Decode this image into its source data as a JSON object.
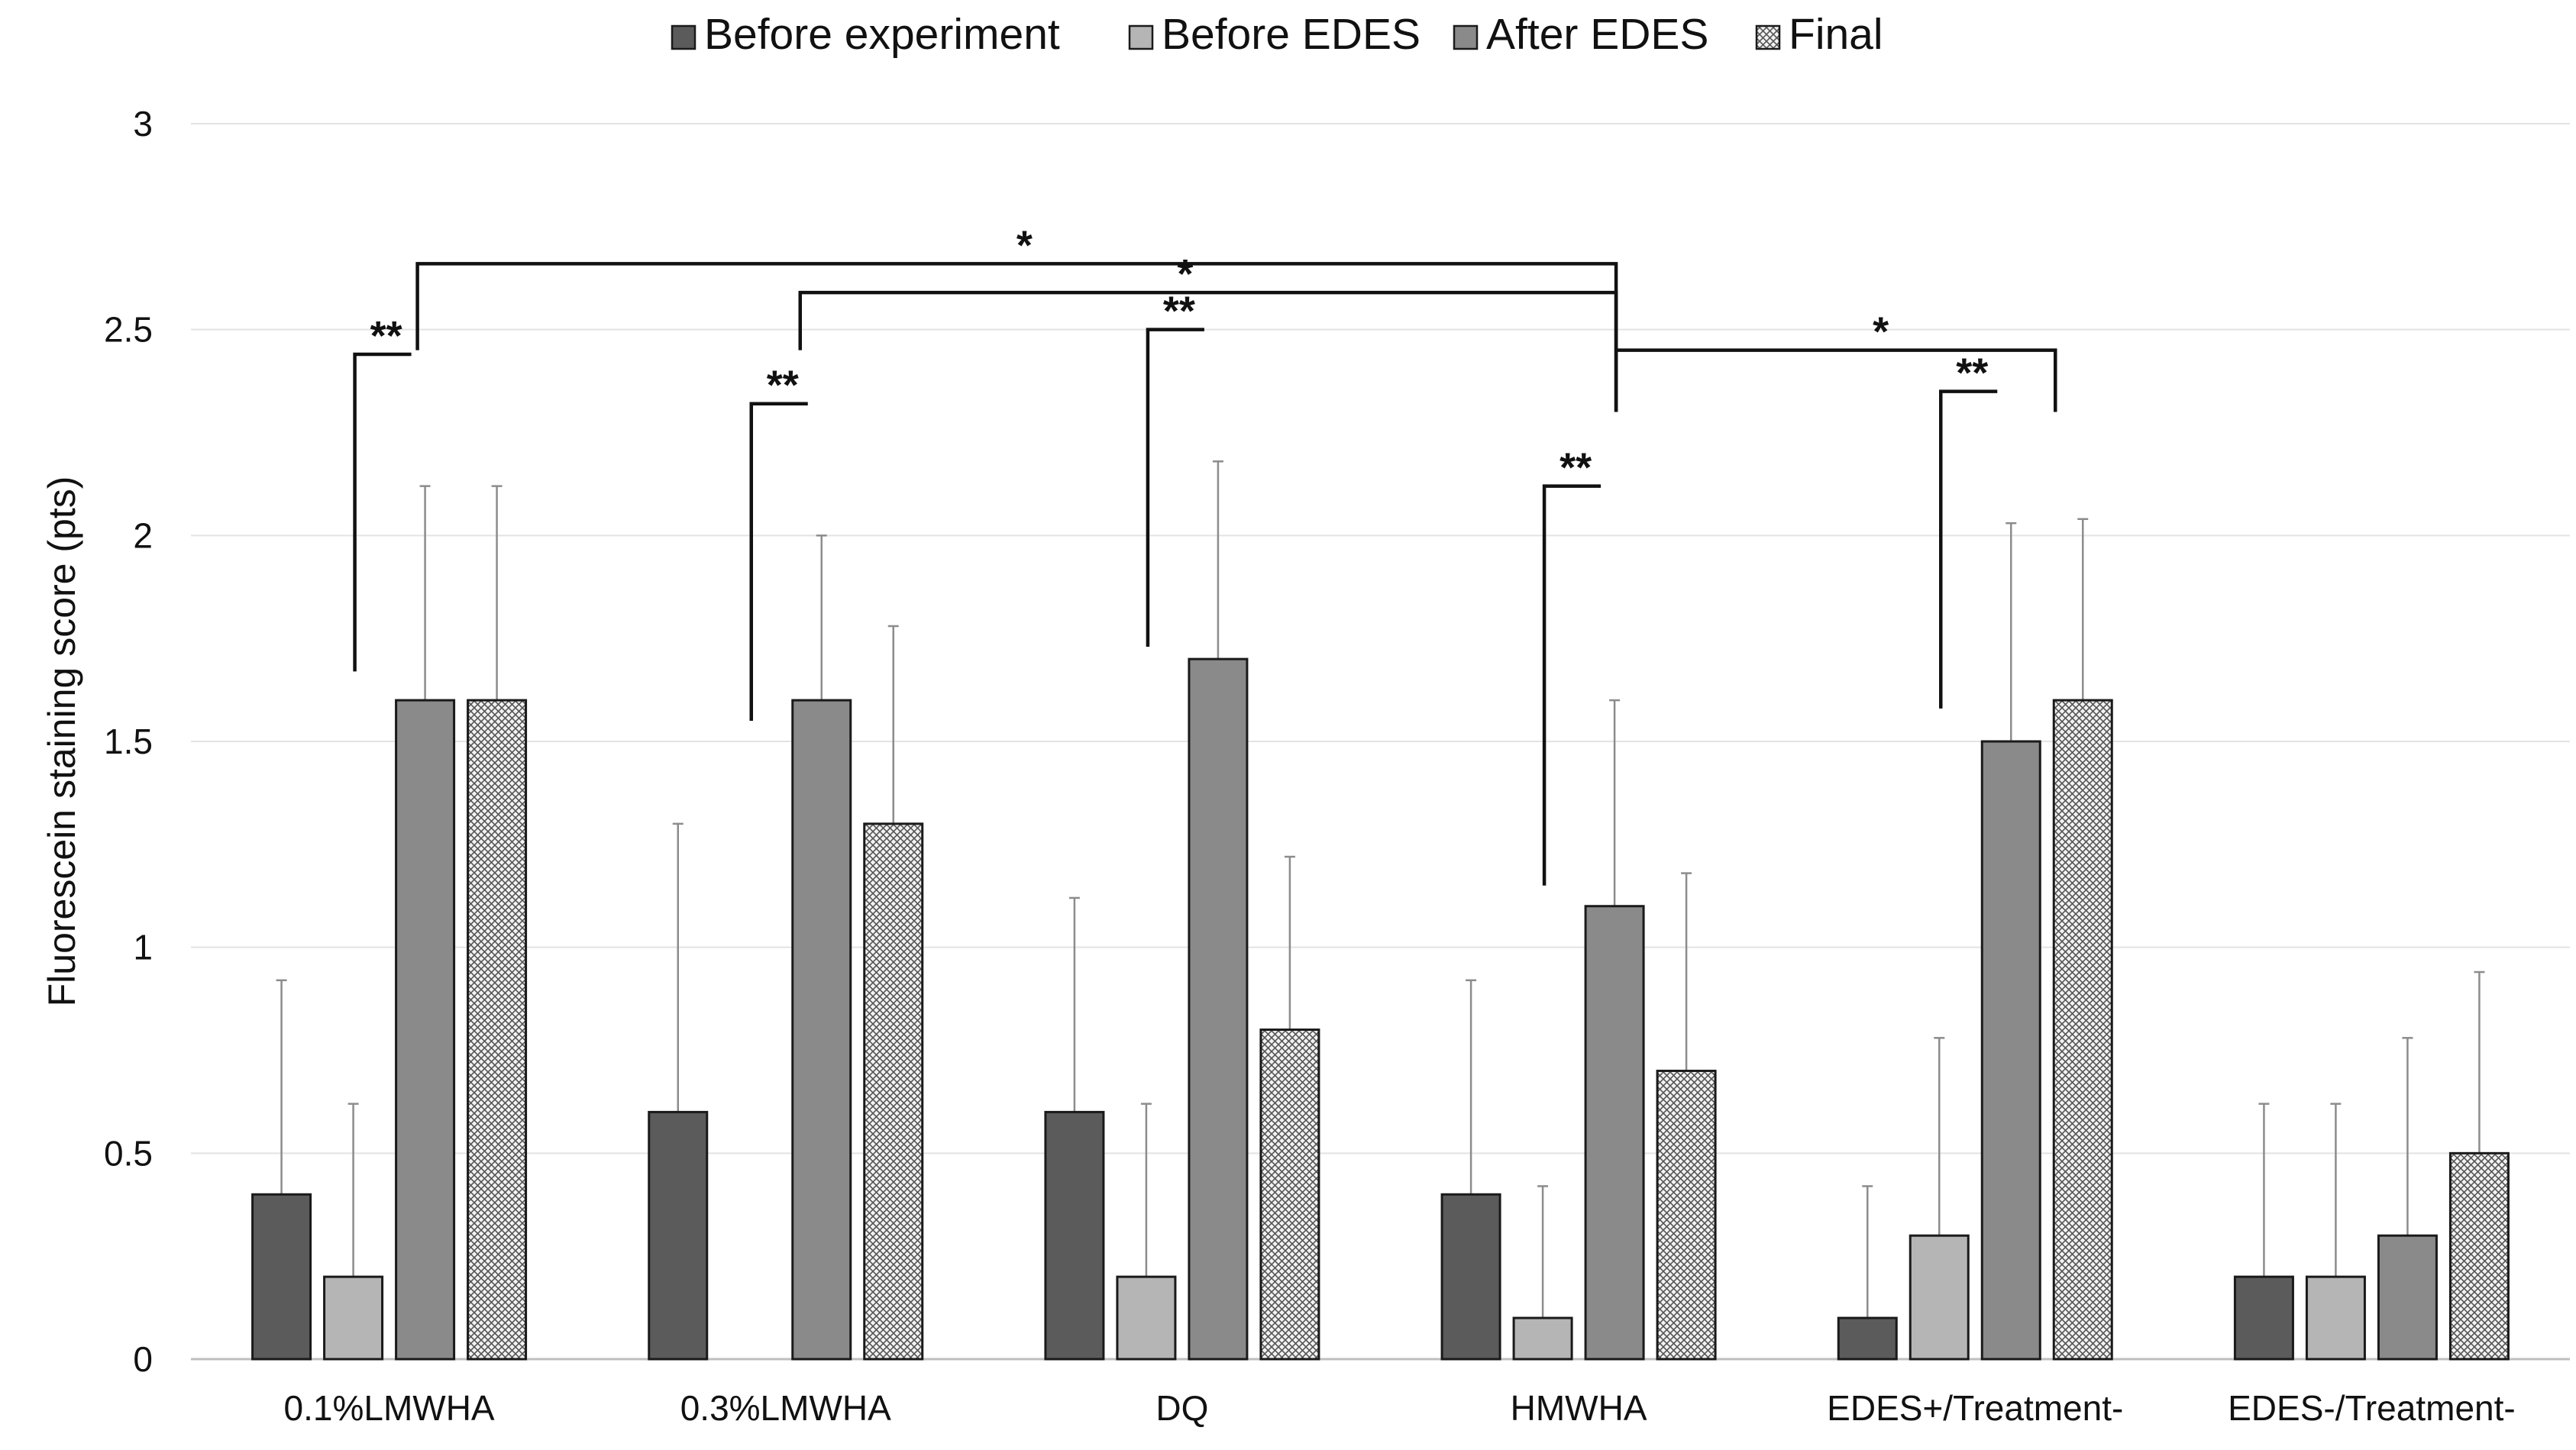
{
  "chart_data": {
    "type": "bar",
    "title": "",
    "ylabel": "Fluorescein staining score (pts)",
    "xlabel": "",
    "ylim": [
      0,
      3
    ],
    "yticks": [
      0,
      0.5,
      1,
      1.5,
      2,
      2.5,
      3
    ],
    "ytick_labels": [
      "0",
      "0.5",
      "1",
      "1.5",
      "2",
      "2.5",
      "3"
    ],
    "grid": true,
    "legend_position": "top-center",
    "categories": [
      "0.1%LMWHA",
      "0.3%LMWHA",
      "DQ",
      "HMWHA",
      "EDES+/Treatment-",
      "EDES-/Treatment-"
    ],
    "series": [
      {
        "name": "Before experiment",
        "color": "#5b5b5b",
        "pattern": "solid",
        "values": [
          0.4,
          0.6,
          0.6,
          0.4,
          0.1,
          0.2
        ],
        "errors": [
          0.52,
          0.7,
          0.52,
          0.52,
          0.32,
          0.42
        ]
      },
      {
        "name": "Before EDES",
        "color": "#b5b5b5",
        "pattern": "solid",
        "values": [
          0.2,
          0,
          0.2,
          0.1,
          0.3,
          0.2
        ],
        "errors": [
          0.42,
          0,
          0.42,
          0.32,
          0.48,
          0.42
        ]
      },
      {
        "name": "After EDES",
        "color": "#8a8a8a",
        "pattern": "solid",
        "values": [
          1.6,
          1.6,
          1.7,
          1.1,
          1.5,
          0.3
        ],
        "errors": [
          0.52,
          0.4,
          0.48,
          0.5,
          0.53,
          0.48
        ]
      },
      {
        "name": "Final",
        "color": "#e6e6e6",
        "pattern": "crosshatch",
        "values": [
          1.6,
          1.3,
          0.8,
          0.7,
          1.6,
          0.5
        ],
        "errors": [
          0.52,
          0.48,
          0.42,
          0.48,
          0.44,
          0.44
        ]
      }
    ],
    "significance": [
      {
        "label": "**",
        "type": "within",
        "category": "0.1%LMWHA",
        "from_series": "Before EDES",
        "to_series": "After EDES"
      },
      {
        "label": "**",
        "type": "within",
        "category": "0.3%LMWHA",
        "from_series": "Before EDES",
        "to_series": "After EDES"
      },
      {
        "label": "**",
        "type": "within",
        "category": "DQ",
        "from_series": "Before EDES",
        "to_series": "After EDES"
      },
      {
        "label": "**",
        "type": "within",
        "category": "HMWHA",
        "from_series": "Before EDES",
        "to_series": "After EDES"
      },
      {
        "label": "**",
        "type": "within",
        "category": "EDES+/Treatment-",
        "from_series": "Before EDES",
        "to_series": "After EDES"
      },
      {
        "label": "*",
        "type": "between",
        "from_category": "0.1%LMWHA",
        "to_category": "HMWHA"
      },
      {
        "label": "*",
        "type": "between",
        "from_category": "0.3%LMWHA",
        "to_category": "HMWHA"
      },
      {
        "label": "*",
        "type": "between",
        "from_category": "HMWHA",
        "to_category": "EDES+/Treatment-"
      }
    ]
  }
}
